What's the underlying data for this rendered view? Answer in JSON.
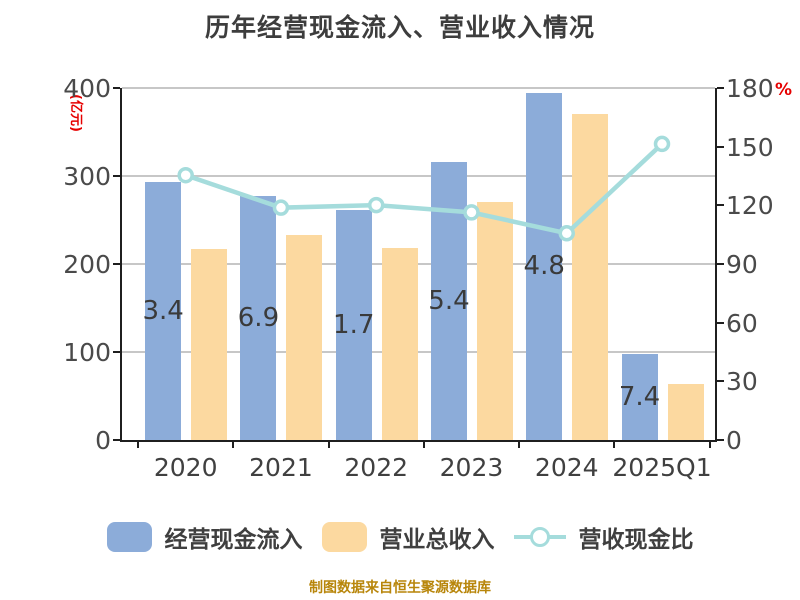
{
  "footer": {
    "text": "制图数据来自恒生聚源数据库"
  },
  "colors": {
    "bar_cash": "#8CACD9",
    "bar_revenue": "#FCD9A0",
    "line_ratio": "#A5DCDC",
    "axis": "#1F1F1F",
    "grid": "#C7C7C7",
    "tick_text": "#4A4A4A",
    "red_unit": "#E60000",
    "footer_text": "#B8860B"
  },
  "chart_data": {
    "type": "combo_bar_line",
    "title": "历年经营现金流入、营业收入情况",
    "categories": [
      "2020",
      "2021",
      "2022",
      "2023",
      "2024",
      "2025Q1"
    ],
    "series": [
      {
        "name": "经营现金流入",
        "type": "bar",
        "axis": "left",
        "color": "#8CACD9",
        "values": [
          293.4,
          276.9,
          261.7,
          315.4,
          394.8,
          97.4
        ],
        "value_labels_visible": [
          "3.4",
          "6.9",
          "1.7",
          "5.4",
          "4.8",
          "7.4"
        ]
      },
      {
        "name": "营业总收入",
        "type": "bar",
        "axis": "left",
        "color": "#FCD9A0",
        "values": [
          217,
          233,
          218,
          271,
          370,
          64
        ]
      },
      {
        "name": "营收现金比",
        "type": "line",
        "axis": "right",
        "color": "#A5DCDC",
        "marker": "circle-white-fill",
        "values": [
          135.4,
          118.8,
          120.1,
          116.4,
          105.7,
          151.4
        ]
      }
    ],
    "left_axis": {
      "label": "(亿元)",
      "min": 0,
      "max": 400,
      "tick_step": 100,
      "ticks": [
        "400",
        "300",
        "200",
        "100",
        "0"
      ]
    },
    "right_axis": {
      "label": "%",
      "min": 0,
      "max": 180,
      "tick_step": 30,
      "ticks": [
        "180",
        "150",
        "120",
        "90",
        "60",
        "30",
        "0"
      ]
    },
    "grid": "horizontal-at-left-ticks",
    "legend_position": "bottom"
  }
}
